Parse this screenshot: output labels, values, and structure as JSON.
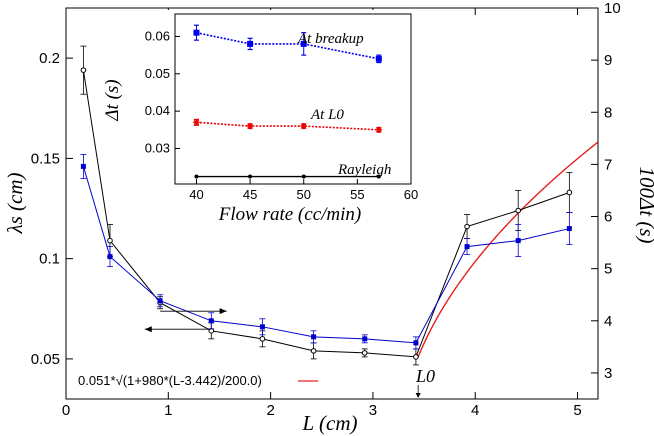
{
  "chart_data": [
    {
      "type": "line",
      "panel": "main",
      "xlabel": "L (cm)",
      "ylabel_left": "λs (cm)",
      "ylabel_right": "100Δt (s)",
      "xlim": [
        0,
        5.2
      ],
      "ylim_left": [
        0.03,
        0.225
      ],
      "ylim_right": [
        2.5,
        10
      ],
      "x_ticks": [
        "0",
        "1",
        "2",
        "3",
        "4",
        "5"
      ],
      "y_left_ticks": [
        "0.05",
        "0.1",
        "0.15",
        "0.2"
      ],
      "y_right_ticks": [
        "3",
        "4",
        "5",
        "6",
        "7",
        "8",
        "9",
        "10"
      ],
      "legend": {
        "placement": "bottom-left",
        "label": "0.051*√(1+980*(L-3.442)/200.0)"
      },
      "annotation": "L0",
      "arrows": [
        "right",
        "left"
      ],
      "series": [
        {
          "color": "#000000",
          "marker": "open-circle",
          "axis": "left",
          "x": [
            0.17,
            0.43,
            0.92,
            1.42,
            1.92,
            2.42,
            2.92,
            3.42,
            3.92,
            4.42,
            4.92
          ],
          "y": [
            0.194,
            0.109,
            0.078,
            0.064,
            0.06,
            0.054,
            0.053,
            0.051,
            0.116,
            0.124,
            0.133
          ],
          "err": [
            0.012,
            0.008,
            0.003,
            0.004,
            0.004,
            0.004,
            0.002,
            0.004,
            0.006,
            0.01,
            0.01
          ]
        },
        {
          "color": "#0000cc",
          "marker": "filled-square",
          "axis": "left",
          "x": [
            0.17,
            0.43,
            0.92,
            1.42,
            1.92,
            2.42,
            2.92,
            3.42,
            3.92,
            4.42,
            4.92
          ],
          "y": [
            0.146,
            0.101,
            0.079,
            0.069,
            0.066,
            0.061,
            0.06,
            0.058,
            0.106,
            0.109,
            0.115
          ],
          "err": [
            0.006,
            0.005,
            0.003,
            0.004,
            0.004,
            0.003,
            0.002,
            0.003,
            0.004,
            0.008,
            0.008
          ]
        },
        {
          "color": "#e62020",
          "marker": "none",
          "axis": "left",
          "function": "0.051*sqrt(1+980*(L-3.442)/200.0)",
          "x_range": [
            3.442,
            5.2
          ]
        }
      ]
    },
    {
      "type": "line",
      "panel": "inset",
      "xlabel": "Flow rate (cc/min)",
      "ylabel": "Δt (s)",
      "xlim": [
        38,
        60
      ],
      "ylim": [
        0.0205,
        0.066
      ],
      "x_ticks": [
        "40",
        "45",
        "50",
        "55",
        "60"
      ],
      "y_ticks": [
        "0.03",
        "0.04",
        "0.05",
        "0.06"
      ],
      "series": [
        {
          "name": "At breakup",
          "color": "#0000ee",
          "marker": "filled-square",
          "x": [
            40,
            45,
            50,
            57
          ],
          "y": [
            0.061,
            0.058,
            0.058,
            0.054
          ],
          "err": [
            0.002,
            0.0015,
            0.003,
            0.001
          ]
        },
        {
          "name": "At L0",
          "color": "#ee0000",
          "marker": "star",
          "x": [
            40,
            45,
            50,
            57
          ],
          "y": [
            0.037,
            0.036,
            0.036,
            0.035
          ],
          "err": [
            0.0008,
            0.0006,
            0.0006,
            0.0006
          ]
        },
        {
          "name": "Rayleigh",
          "color": "#000000",
          "marker": "dot",
          "x": [
            40,
            45,
            50,
            57
          ],
          "y": [
            0.0225,
            0.0225,
            0.0225,
            0.0225
          ],
          "err": [
            0,
            0,
            0,
            0
          ]
        }
      ]
    }
  ]
}
